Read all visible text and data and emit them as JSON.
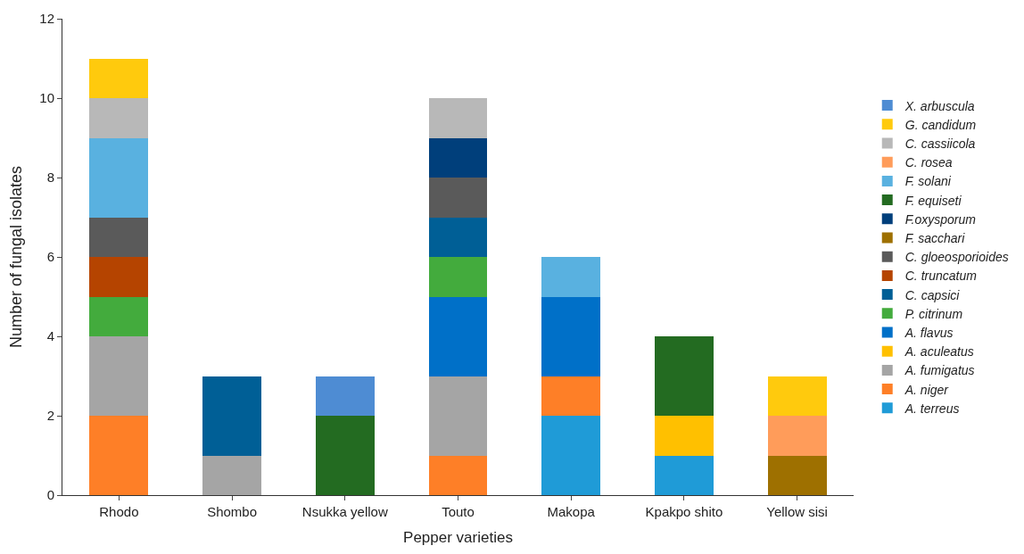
{
  "chart_data": {
    "type": "bar",
    "stacked": true,
    "xlabel": "Pepper varieties",
    "ylabel": "Number of fungal isolates",
    "categories": [
      "Rhodo",
      "Shombo",
      "Nsukka yellow",
      "Touto",
      "Makopa",
      "Kpakpo shito",
      "Yellow sisi"
    ],
    "ylim": [
      0,
      12
    ],
    "yticks": [
      0,
      2,
      4,
      6,
      8,
      10,
      12
    ],
    "legend": "right",
    "series": [
      {
        "name": "A. terreus",
        "color": "#1f9bd7",
        "values": [
          0,
          0,
          0,
          0,
          2,
          1,
          0
        ]
      },
      {
        "name": "A. niger",
        "color": "#fe7f27",
        "values": [
          2,
          0,
          0,
          1,
          1,
          0,
          0
        ]
      },
      {
        "name": "A. fumigatus",
        "color": "#a5a5a5",
        "values": [
          2,
          1,
          0,
          2,
          0,
          0,
          0
        ]
      },
      {
        "name": "A. aculeatus",
        "color": "#ffc000",
        "values": [
          0,
          0,
          0,
          0,
          0,
          1,
          0
        ]
      },
      {
        "name": "A. flavus",
        "color": "#0070c8",
        "values": [
          0,
          0,
          0,
          2,
          2,
          0,
          0
        ]
      },
      {
        "name": "P. citrinum",
        "color": "#43ab3d",
        "values": [
          1,
          0,
          0,
          1,
          0,
          0,
          0
        ]
      },
      {
        "name": "C. capsici",
        "color": "#005f96",
        "values": [
          0,
          2,
          0,
          1,
          0,
          0,
          0
        ]
      },
      {
        "name": "C. truncatum",
        "color": "#b54400",
        "values": [
          1,
          0,
          0,
          0,
          0,
          0,
          0
        ]
      },
      {
        "name": "C. gloeosporioides",
        "color": "#5a5a5a",
        "values": [
          1,
          0,
          0,
          1,
          0,
          0,
          0
        ]
      },
      {
        "name": "F. sacchari",
        "color": "#9e7000",
        "values": [
          0,
          0,
          0,
          0,
          0,
          0,
          1
        ]
      },
      {
        "name": "F.oxysporum",
        "color": "#003f7b",
        "values": [
          0,
          0,
          0,
          1,
          0,
          0,
          0
        ]
      },
      {
        "name": "F. equiseti",
        "color": "#236b21",
        "values": [
          0,
          0,
          2,
          0,
          0,
          2,
          0
        ]
      },
      {
        "name": "F. solani",
        "color": "#59b1e0",
        "values": [
          2,
          0,
          0,
          0,
          1,
          0,
          0
        ]
      },
      {
        "name": "C. rosea",
        "color": "#ff9c5a",
        "values": [
          0,
          0,
          0,
          0,
          0,
          0,
          1
        ]
      },
      {
        "name": "C. cassiicola",
        "color": "#b8b8b8",
        "values": [
          1,
          0,
          0,
          1,
          0,
          0,
          0
        ]
      },
      {
        "name": "G. candidum",
        "color": "#ffca0d",
        "values": [
          1,
          0,
          0,
          0,
          0,
          0,
          1
        ]
      },
      {
        "name": "X. arbuscula",
        "color": "#4e8cd3",
        "values": [
          0,
          0,
          1,
          0,
          0,
          0,
          0
        ]
      }
    ]
  }
}
